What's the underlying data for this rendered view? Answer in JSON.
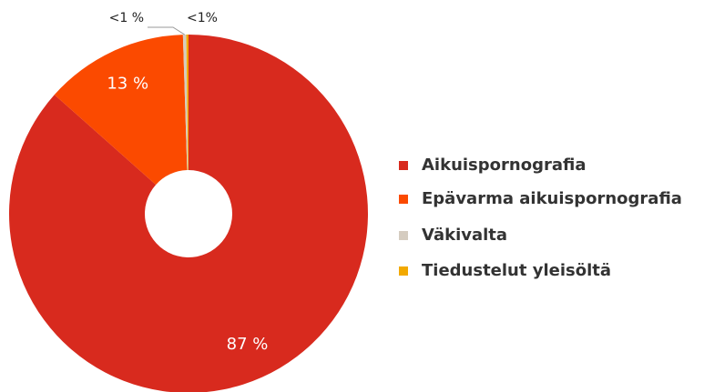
{
  "chart_data": {
    "type": "donut",
    "categories": [
      "Aikuispornografia",
      "Epävarma aikuispornografia",
      "Väkivalta",
      "Tiedustelut yleisöltä"
    ],
    "values": [
      87,
      13,
      0.3,
      0.2
    ],
    "value_labels": [
      "87 %",
      "13 %",
      "<1 %",
      "<1%"
    ],
    "colors": [
      "#d82a1e",
      "#fb4a00",
      "#d5ccc0",
      "#f2a900"
    ],
    "legend": "right"
  }
}
